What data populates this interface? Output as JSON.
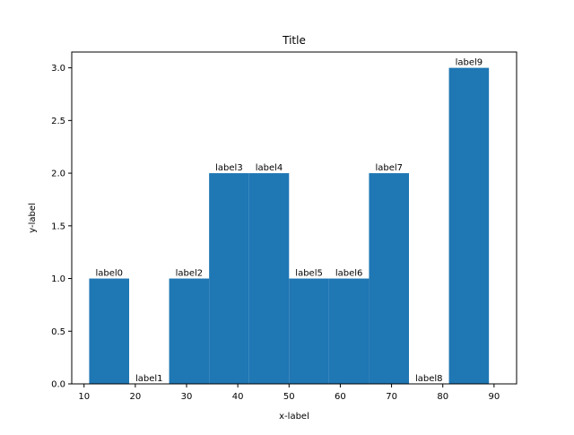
{
  "chart_data": {
    "type": "bar",
    "title": "Title",
    "xlabel": "x-label",
    "ylabel": "y-label",
    "xlim": [
      7.6,
      94.4
    ],
    "ylim": [
      0,
      3.15
    ],
    "xticks": [
      10,
      20,
      30,
      40,
      50,
      60,
      70,
      80,
      90
    ],
    "xtick_labels": [
      "10",
      "20",
      "30",
      "40",
      "50",
      "60",
      "70",
      "80",
      "90"
    ],
    "yticks": [
      0.0,
      0.5,
      1.0,
      1.5,
      2.0,
      2.5,
      3.0
    ],
    "ytick_labels": [
      "0.0",
      "0.5",
      "1.0",
      "1.5",
      "2.0",
      "2.5",
      "3.0"
    ],
    "grid": false,
    "bar_color": "#1f77b4",
    "bins": [
      {
        "x0": 11.0,
        "x1": 18.8,
        "value": 1,
        "label": "label0"
      },
      {
        "x0": 18.8,
        "x1": 26.6,
        "value": 0,
        "label": "label1"
      },
      {
        "x0": 26.6,
        "x1": 34.4,
        "value": 1,
        "label": "label2"
      },
      {
        "x0": 34.4,
        "x1": 42.2,
        "value": 2,
        "label": "label3"
      },
      {
        "x0": 42.2,
        "x1": 50.0,
        "value": 2,
        "label": "label4"
      },
      {
        "x0": 50.0,
        "x1": 57.8,
        "value": 1,
        "label": "label5"
      },
      {
        "x0": 57.8,
        "x1": 65.6,
        "value": 1,
        "label": "label6"
      },
      {
        "x0": 65.6,
        "x1": 73.4,
        "value": 2,
        "label": "label7"
      },
      {
        "x0": 73.4,
        "x1": 81.2,
        "value": 0,
        "label": "label8"
      },
      {
        "x0": 81.2,
        "x1": 89.0,
        "value": 3,
        "label": "label9"
      }
    ]
  }
}
